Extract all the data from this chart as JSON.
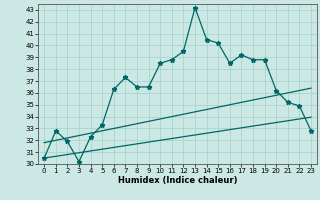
{
  "xlabel": "Humidex (Indice chaleur)",
  "bg_color": "#cce8e4",
  "grid_color": "#aad4ce",
  "line_color": "#006666",
  "xlim": [
    -0.5,
    23.5
  ],
  "ylim": [
    30,
    43.5
  ],
  "xticks": [
    0,
    1,
    2,
    3,
    4,
    5,
    6,
    7,
    8,
    9,
    10,
    11,
    12,
    13,
    14,
    15,
    16,
    17,
    18,
    19,
    20,
    21,
    22,
    23
  ],
  "yticks": [
    30,
    31,
    32,
    33,
    34,
    35,
    36,
    37,
    38,
    39,
    40,
    41,
    42,
    43
  ],
  "series1_x": [
    0,
    1,
    2,
    3,
    4,
    5,
    6,
    7,
    8,
    9,
    10,
    11,
    12,
    13,
    14,
    15,
    16,
    17,
    18,
    19,
    20,
    21,
    22,
    23
  ],
  "series1_y": [
    30.5,
    32.8,
    31.9,
    30.2,
    32.3,
    33.3,
    36.3,
    37.3,
    36.5,
    36.5,
    38.5,
    38.8,
    39.5,
    43.2,
    40.5,
    40.2,
    38.5,
    39.2,
    38.8,
    38.8,
    36.2,
    35.2,
    34.9,
    32.8
  ],
  "series2_x": [
    0,
    1,
    2,
    3,
    4,
    5,
    6,
    7,
    8,
    9,
    10,
    11,
    12,
    13,
    14,
    15,
    16,
    17,
    18,
    19,
    20,
    21,
    22,
    23
  ],
  "series2_y": [
    31.8,
    32.0,
    32.2,
    32.4,
    32.6,
    32.8,
    33.0,
    33.2,
    33.4,
    33.6,
    33.8,
    34.0,
    34.2,
    34.4,
    34.6,
    34.8,
    35.0,
    35.2,
    35.4,
    35.6,
    35.8,
    36.0,
    36.2,
    36.4
  ],
  "series3_x": [
    0,
    1,
    2,
    3,
    4,
    5,
    6,
    7,
    8,
    9,
    10,
    11,
    12,
    13,
    14,
    15,
    16,
    17,
    18,
    19,
    20,
    21,
    22,
    23
  ],
  "series3_y": [
    30.5,
    30.65,
    30.8,
    30.95,
    31.1,
    31.25,
    31.4,
    31.55,
    31.7,
    31.85,
    32.0,
    32.15,
    32.3,
    32.45,
    32.6,
    32.75,
    32.9,
    33.05,
    33.2,
    33.35,
    33.5,
    33.65,
    33.8,
    33.95
  ],
  "marker": "*",
  "marker_size": 3.5,
  "linewidth": 0.9
}
